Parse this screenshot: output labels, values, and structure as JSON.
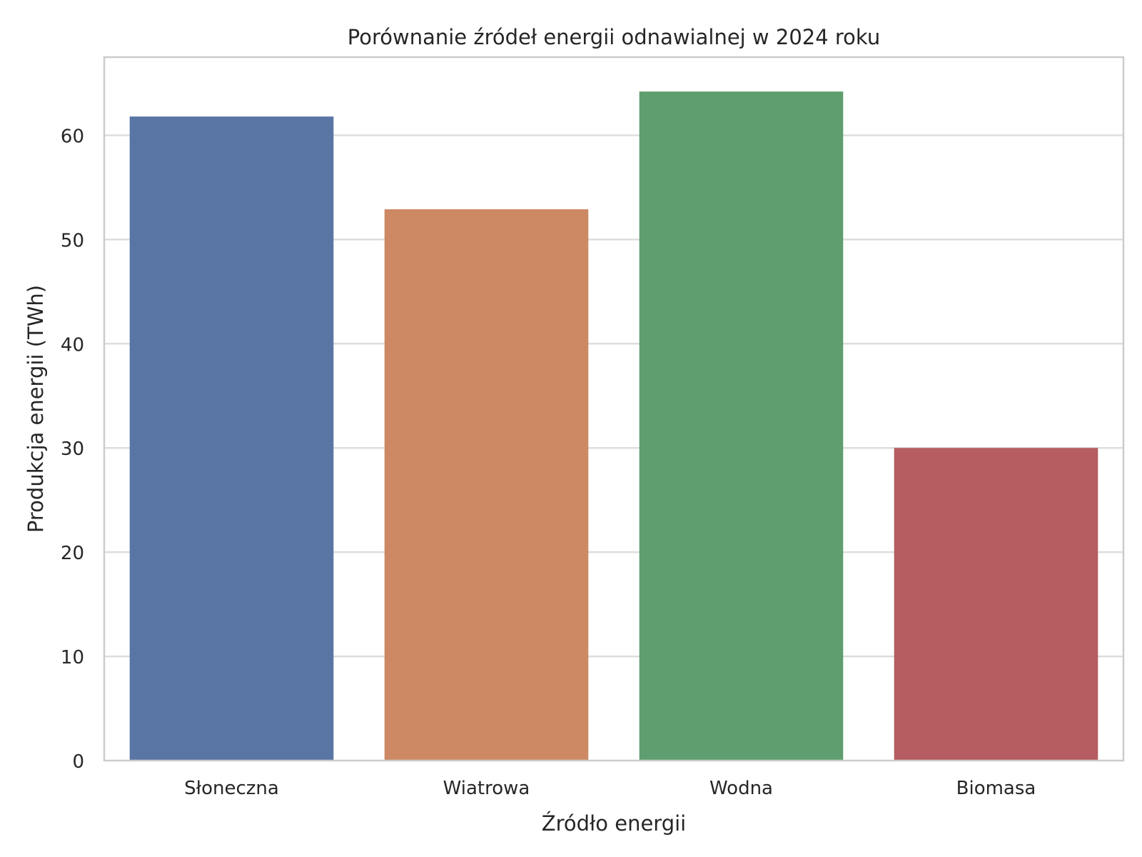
{
  "chart_data": {
    "type": "bar",
    "title": "Porównanie źródeł energii odnawialnej w 2024 roku",
    "xlabel": "Źródło energii",
    "ylabel": "Produkcja energii (TWh)",
    "categories": [
      "Słoneczna",
      "Wiatrowa",
      "Wodna",
      "Biomasa"
    ],
    "values": [
      61.8,
      52.9,
      64.2,
      30.0
    ],
    "colors": [
      "#5975a4",
      "#cc8963",
      "#5f9e6e",
      "#b55d60"
    ],
    "ylim": [
      0,
      67.5
    ],
    "yticks": [
      0,
      10,
      20,
      30,
      40,
      50,
      60
    ],
    "ytick_labels": [
      "0",
      "10",
      "20",
      "30",
      "40",
      "50",
      "60"
    ],
    "grid": "horizontal",
    "legend": "none"
  }
}
